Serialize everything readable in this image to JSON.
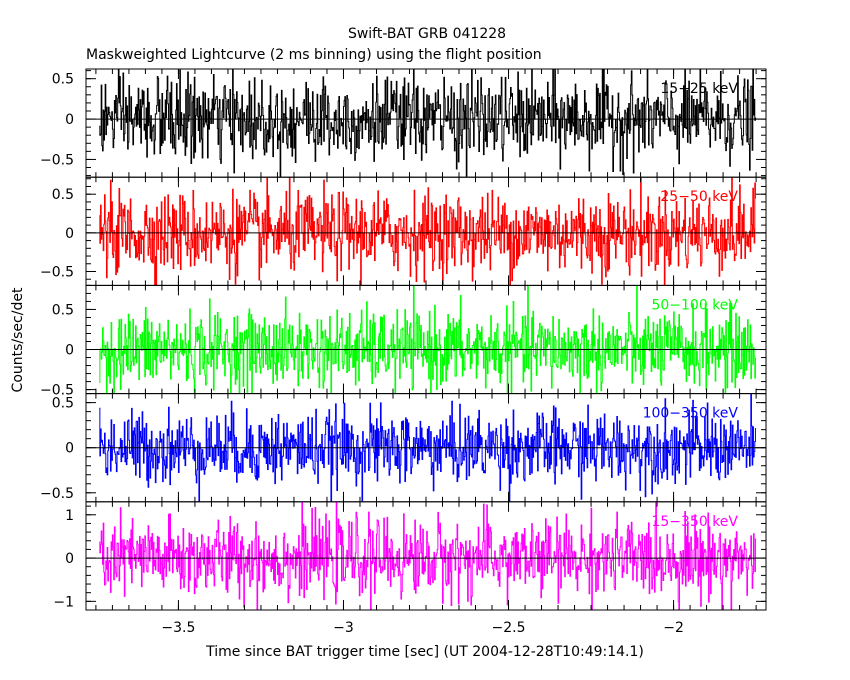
{
  "chart_data": {
    "type": "line",
    "title": "Swift-BAT GRB 041228",
    "subtitle": "Maskweighted Lightcurve (2 ms binning) using the flight position",
    "xlabel": "Time since BAT trigger time [sec] (UT 2004-12-28T10:49:14.1)",
    "ylabel": "Counts/sec/det",
    "xlim": [
      -3.78,
      -1.72
    ],
    "x_data_range": [
      -3.74,
      -1.75
    ],
    "bin_width_sec": 0.002,
    "x_ticks": [
      {
        "value": -3.5,
        "label": "−3.5"
      },
      {
        "value": -3,
        "label": "−3"
      },
      {
        "value": -2.5,
        "label": "−2.5"
      },
      {
        "value": -2,
        "label": "−2"
      }
    ],
    "panels": [
      {
        "name": "15-25 keV",
        "label": "15−25 keV",
        "color": "#000000",
        "ylim": [
          -0.72,
          0.62
        ],
        "amplitude": 0.26,
        "y_ticks": [
          {
            "value": 0.5,
            "label": "0.5"
          },
          {
            "value": 0,
            "label": "0"
          },
          {
            "value": -0.5,
            "label": "−0.5"
          }
        ]
      },
      {
        "name": "25-50 keV",
        "label": "25−50 keV",
        "color": "#ff0000",
        "ylim": [
          -0.68,
          0.72
        ],
        "amplitude": 0.26,
        "y_ticks": [
          {
            "value": 0.5,
            "label": "0.5"
          },
          {
            "value": 0,
            "label": "0"
          },
          {
            "value": -0.5,
            "label": "−0.5"
          }
        ]
      },
      {
        "name": "50-100 keV",
        "label": "50−100 keV",
        "color": "#00ff00",
        "ylim": [
          -0.55,
          0.8
        ],
        "amplitude": 0.24,
        "y_ticks": [
          {
            "value": 0.5,
            "label": "0.5"
          },
          {
            "value": 0,
            "label": "0"
          },
          {
            "value": -0.5,
            "label": "−0.5"
          }
        ]
      },
      {
        "name": "100-350 keV",
        "label": "100−350 keV",
        "color": "#0000ff",
        "ylim": [
          -0.6,
          0.6
        ],
        "amplitude": 0.2,
        "y_ticks": [
          {
            "value": 0.5,
            "label": "0.5"
          },
          {
            "value": 0,
            "label": "0"
          },
          {
            "value": -0.5,
            "label": "−0.5"
          }
        ]
      },
      {
        "name": "15-350 keV",
        "label": "15−350 keV",
        "color": "#ff00ff",
        "ylim": [
          -1.2,
          1.3
        ],
        "amplitude": 0.45,
        "y_ticks": [
          {
            "value": 1,
            "label": "1"
          },
          {
            "value": 0,
            "label": "0"
          },
          {
            "value": -1,
            "label": "−1"
          }
        ]
      }
    ]
  }
}
